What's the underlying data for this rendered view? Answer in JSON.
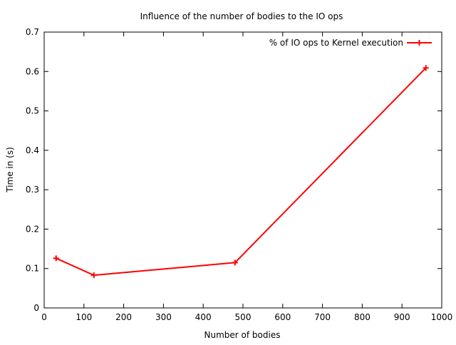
{
  "chart_data": {
    "type": "line",
    "title": "Influence of the number of bodies to the IO ops",
    "xlabel": "Number of bodies",
    "ylabel": "Time in (s)",
    "xlim": [
      0,
      1000
    ],
    "ylim": [
      0,
      0.7
    ],
    "x_ticks": [
      "0",
      "100",
      "200",
      "300",
      "400",
      "500",
      "600",
      "700",
      "800",
      "900",
      "1000"
    ],
    "y_ticks": [
      "0",
      "0.1",
      "0.2",
      "0.3",
      "0.4",
      "0.5",
      "0.6",
      "0.7"
    ],
    "x_tick_values": [
      0,
      100,
      200,
      300,
      400,
      500,
      600,
      700,
      800,
      900,
      1000
    ],
    "y_tick_values": [
      0,
      0.1,
      0.2,
      0.3,
      0.4,
      0.5,
      0.6,
      0.7
    ],
    "grid": false,
    "legend_position": "top-right",
    "series": [
      {
        "name": "% of IO ops to Kernel execution",
        "color": "#ff0000",
        "marker": "plus",
        "x": [
          30,
          125,
          480,
          960
        ],
        "y": [
          0.126,
          0.083,
          0.115,
          0.609
        ]
      }
    ]
  }
}
